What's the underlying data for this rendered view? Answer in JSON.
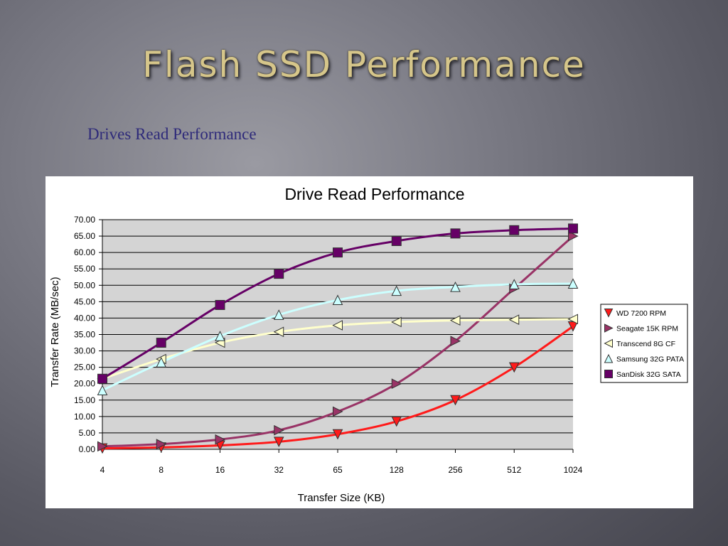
{
  "slide": {
    "title": "Flash SSD Performance",
    "subtitle": "Drives Read Performance"
  },
  "chart_data": {
    "type": "line",
    "title": "Drive Read Performance",
    "xlabel": "Transfer Size (KB)",
    "ylabel": "Transfer Rate (MB/sec)",
    "categories": [
      "4",
      "8",
      "16",
      "32",
      "65",
      "128",
      "256",
      "512",
      "1024"
    ],
    "ylim": [
      0,
      70
    ],
    "yticks": [
      "0.00",
      "5.00",
      "10.00",
      "15.00",
      "20.00",
      "25.00",
      "30.00",
      "35.00",
      "40.00",
      "45.00",
      "50.00",
      "55.00",
      "60.00",
      "65.00",
      "70.00"
    ],
    "grid": true,
    "legend_position": "right",
    "series": [
      {
        "name": "WD 7200 RPM",
        "color": "#ff1a1a",
        "marker": "triangle-down",
        "values": [
          0.3,
          0.6,
          1.2,
          2.3,
          4.6,
          8.5,
          15.0,
          25.0,
          37.5
        ]
      },
      {
        "name": "Seagate 15K RPM",
        "color": "#993366",
        "marker": "triangle-right",
        "values": [
          0.9,
          1.6,
          3.0,
          5.8,
          11.5,
          20.0,
          33.0,
          49.0,
          65.0
        ]
      },
      {
        "name": "Transcend 8G CF",
        "color": "#ffffcc",
        "marker": "triangle-left",
        "values": [
          21.5,
          27.5,
          32.5,
          35.8,
          37.8,
          38.8,
          39.3,
          39.5,
          39.7
        ]
      },
      {
        "name": "Samsung 32G PATA",
        "color": "#ccffff",
        "marker": "triangle-up",
        "values": [
          18.0,
          26.5,
          34.5,
          41.0,
          45.5,
          48.3,
          49.5,
          50.3,
          50.5
        ]
      },
      {
        "name": "SanDisk 32G SATA",
        "color": "#660066",
        "marker": "square",
        "values": [
          21.5,
          32.5,
          44.0,
          53.5,
          60.0,
          63.5,
          65.8,
          66.8,
          67.3
        ]
      }
    ]
  }
}
